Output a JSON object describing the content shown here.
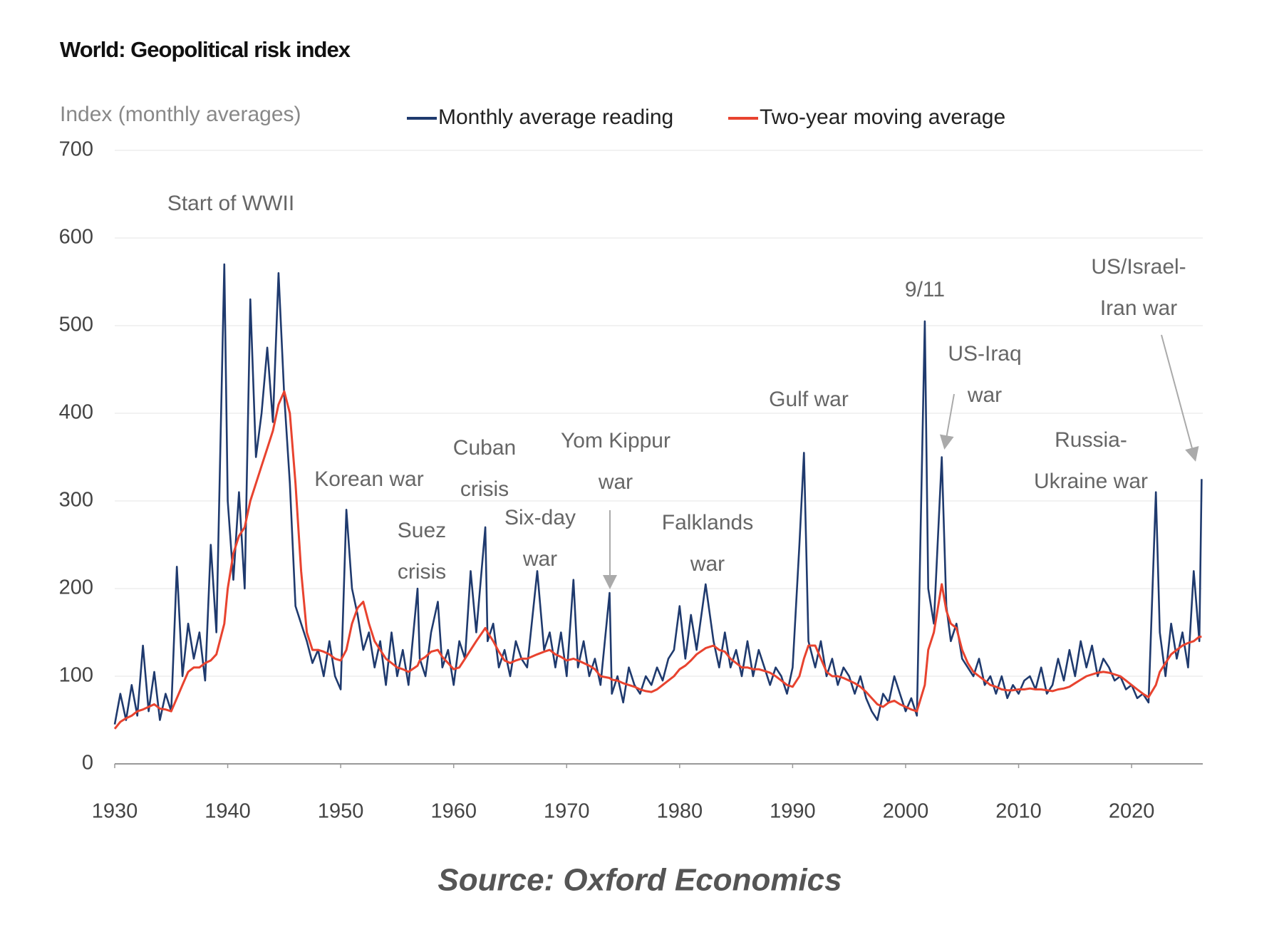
{
  "chart_data": {
    "type": "line",
    "title": "World: Geopolitical risk index",
    "y_label": "Index (monthly averages)",
    "source": "Source: Oxford Economics",
    "xlim": [
      1930,
      2026.3
    ],
    "xticks": [
      1930,
      1940,
      1950,
      1960,
      1970,
      1980,
      1990,
      2000,
      2010,
      2020
    ],
    "ylim": [
      0,
      700
    ],
    "yticks": [
      0,
      100,
      200,
      300,
      400,
      500,
      600,
      700
    ],
    "grid": true,
    "x": [
      1930,
      1930.5,
      1931,
      1931.5,
      1932,
      1932.5,
      1933,
      1933.5,
      1934,
      1934.5,
      1935,
      1935.5,
      1936,
      1936.5,
      1937,
      1937.5,
      1938,
      1938.5,
      1939,
      1939.7,
      1940,
      1940.5,
      1941,
      1941.5,
      1942,
      1942.5,
      1943,
      1943.5,
      1944,
      1944.5,
      1945,
      1945.5,
      1946,
      1946.5,
      1947,
      1947.5,
      1948,
      1948.5,
      1949,
      1949.5,
      1950,
      1950.5,
      1951,
      1951.5,
      1952,
      1952.5,
      1953,
      1953.5,
      1954,
      1954.5,
      1955,
      1955.5,
      1956,
      1956.8,
      1957,
      1957.5,
      1958,
      1958.6,
      1959,
      1959.5,
      1960,
      1960.5,
      1961,
      1961.5,
      1962,
      1962.8,
      1963,
      1963.5,
      1964,
      1964.5,
      1965,
      1965.5,
      1966,
      1966.5,
      1967.4,
      1968,
      1968.5,
      1969,
      1969.5,
      1970,
      1970.6,
      1971,
      1971.5,
      1972,
      1972.5,
      1973,
      1973.8,
      1974,
      1974.5,
      1975,
      1975.5,
      1976,
      1976.5,
      1977,
      1977.5,
      1978,
      1978.5,
      1979,
      1979.5,
      1980,
      1980.5,
      1981,
      1981.5,
      1982.3,
      1983,
      1983.5,
      1984,
      1984.5,
      1985,
      1985.5,
      1986,
      1986.5,
      1987,
      1987.5,
      1988,
      1988.5,
      1989,
      1989.5,
      1990,
      1990.6,
      1991,
      1991.4,
      1992,
      1992.5,
      1993,
      1993.5,
      1994,
      1994.5,
      1995,
      1995.5,
      1996,
      1996.5,
      1997,
      1997.5,
      1998,
      1998.5,
      1999,
      1999.5,
      2000,
      2000.5,
      2001,
      2001.7,
      2002,
      2002.5,
      2003.2,
      2003.6,
      2004,
      2004.5,
      2005,
      2005.5,
      2006,
      2006.5,
      2007,
      2007.5,
      2008,
      2008.5,
      2009,
      2009.5,
      2010,
      2010.5,
      2011,
      2011.5,
      2012,
      2012.5,
      2013,
      2013.5,
      2014,
      2014.5,
      2015,
      2015.5,
      2016,
      2016.5,
      2017,
      2017.5,
      2018,
      2018.5,
      2019,
      2019.5,
      2020,
      2020.5,
      2021,
      2021.5,
      2022.15,
      2022.5,
      2023,
      2023.5,
      2024,
      2024.5,
      2025,
      2025.5,
      2026,
      2026.2
    ],
    "series": [
      {
        "name": "Monthly average reading",
        "color": "#1f3a6e",
        "values": [
          45,
          80,
          50,
          90,
          55,
          135,
          60,
          105,
          50,
          80,
          60,
          225,
          100,
          160,
          120,
          150,
          95,
          250,
          150,
          570,
          300,
          210,
          310,
          200,
          530,
          350,
          400,
          475,
          390,
          560,
          420,
          320,
          180,
          160,
          140,
          115,
          130,
          100,
          140,
          100,
          85,
          290,
          200,
          170,
          130,
          150,
          110,
          140,
          90,
          150,
          100,
          130,
          90,
          200,
          120,
          100,
          150,
          185,
          110,
          130,
          90,
          140,
          120,
          220,
          150,
          270,
          140,
          160,
          110,
          130,
          100,
          140,
          120,
          110,
          220,
          130,
          150,
          110,
          150,
          100,
          210,
          110,
          140,
          100,
          120,
          90,
          195,
          80,
          100,
          70,
          110,
          90,
          80,
          100,
          90,
          110,
          95,
          120,
          130,
          180,
          120,
          170,
          130,
          205,
          140,
          110,
          150,
          110,
          130,
          100,
          140,
          100,
          130,
          110,
          90,
          110,
          100,
          80,
          110,
          250,
          355,
          140,
          110,
          140,
          100,
          120,
          90,
          110,
          100,
          80,
          100,
          75,
          60,
          50,
          80,
          70,
          100,
          80,
          60,
          75,
          55,
          505,
          200,
          160,
          350,
          180,
          140,
          160,
          120,
          110,
          100,
          120,
          90,
          100,
          80,
          100,
          75,
          90,
          80,
          95,
          100,
          85,
          110,
          80,
          90,
          120,
          95,
          130,
          100,
          140,
          110,
          135,
          100,
          120,
          110,
          95,
          100,
          85,
          90,
          75,
          80,
          70,
          310,
          150,
          100,
          160,
          120,
          150,
          110,
          220,
          140,
          325
        ]
      },
      {
        "name": "Two-year moving average",
        "color": "#e8432f",
        "values": [
          40,
          48,
          52,
          55,
          60,
          62,
          65,
          68,
          63,
          62,
          60,
          75,
          90,
          105,
          110,
          110,
          115,
          118,
          125,
          160,
          200,
          240,
          260,
          270,
          300,
          320,
          340,
          360,
          380,
          410,
          425,
          400,
          320,
          220,
          150,
          130,
          130,
          128,
          125,
          120,
          118,
          130,
          160,
          178,
          185,
          160,
          140,
          130,
          120,
          115,
          110,
          108,
          105,
          112,
          118,
          122,
          128,
          130,
          122,
          115,
          108,
          110,
          120,
          130,
          140,
          155,
          150,
          140,
          128,
          118,
          115,
          118,
          120,
          120,
          125,
          128,
          130,
          125,
          122,
          118,
          120,
          118,
          115,
          112,
          108,
          100,
          98,
          96,
          95,
          92,
          90,
          88,
          85,
          83,
          82,
          85,
          90,
          95,
          100,
          108,
          112,
          118,
          125,
          132,
          135,
          130,
          128,
          120,
          115,
          110,
          110,
          108,
          108,
          106,
          104,
          100,
          95,
          90,
          88,
          100,
          120,
          135,
          135,
          120,
          105,
          100,
          100,
          98,
          95,
          92,
          88,
          82,
          75,
          68,
          65,
          70,
          72,
          68,
          65,
          62,
          60,
          90,
          130,
          150,
          205,
          175,
          160,
          155,
          130,
          115,
          105,
          100,
          95,
          90,
          88,
          85,
          84,
          84,
          85,
          85,
          86,
          85,
          85,
          84,
          83,
          85,
          86,
          88,
          92,
          96,
          100,
          102,
          104,
          105,
          104,
          102,
          100,
          95,
          90,
          85,
          80,
          76,
          90,
          105,
          115,
          125,
          130,
          135,
          138,
          140,
          145,
          145
        ]
      }
    ],
    "annotations": [
      {
        "lines": [
          "Start of WWII"
        ]
      },
      {
        "lines": [
          "Korean war"
        ]
      },
      {
        "lines": [
          "Suez",
          "crisis"
        ]
      },
      {
        "lines": [
          "Cuban",
          "crisis"
        ]
      },
      {
        "lines": [
          "Six-day",
          "war"
        ]
      },
      {
        "lines": [
          "Yom Kippur",
          "war"
        ]
      },
      {
        "lines": [
          "Falklands",
          "war"
        ]
      },
      {
        "lines": [
          "Gulf war"
        ]
      },
      {
        "lines": [
          "9/11"
        ]
      },
      {
        "lines": [
          "US-Iraq",
          "war"
        ]
      },
      {
        "lines": [
          "Russia-",
          "Ukraine war"
        ]
      },
      {
        "lines": [
          "US/Israel-",
          "Iran war"
        ]
      }
    ]
  }
}
